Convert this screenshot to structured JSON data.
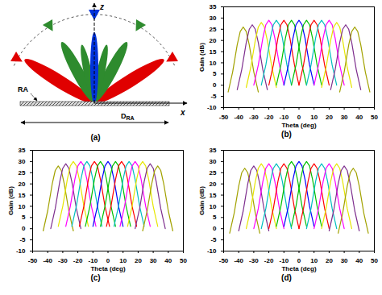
{
  "diagram": {
    "caption": "(a)",
    "axis_z": "z",
    "axis_x": "x",
    "array_label": "RA",
    "diameter_label": "D",
    "diameter_subscript": "RA"
  },
  "chart_data": [
    {
      "type": "line",
      "title": "(b)",
      "xlabel": "Theta (deg)",
      "ylabel": "Gain (dB)",
      "xlim": [
        -50,
        50
      ],
      "ylim": [
        -10,
        35
      ],
      "xticks": [
        -50,
        -40,
        -30,
        -20,
        -10,
        0,
        10,
        20,
        30,
        40,
        50
      ],
      "yticks": [
        -10,
        -5,
        0,
        5,
        10,
        15,
        20,
        25,
        30,
        35
      ],
      "grid": false,
      "series": [
        {
          "color": "#a2a200",
          "x": [
            -47,
            -44,
            -41,
            -39,
            -37,
            -35,
            -33,
            -30,
            -27
          ],
          "values": [
            -3,
            6,
            18,
            24,
            26,
            24,
            18,
            6,
            -3
          ]
        },
        {
          "color": "#7e2f8e",
          "x": [
            -41,
            -38,
            -35,
            -33,
            -31,
            -29,
            -27,
            -24,
            -21
          ],
          "values": [
            -2,
            7,
            19,
            25,
            27,
            25,
            19,
            7,
            -2
          ]
        },
        {
          "color": "#e6e600",
          "x": [
            -35,
            -32,
            -29,
            -27,
            -25,
            -23,
            -21,
            -18,
            -15
          ],
          "values": [
            -1,
            8,
            20,
            26,
            28,
            26,
            20,
            8,
            -1
          ]
        },
        {
          "color": "#ff00ff",
          "x": [
            -30,
            -27,
            -24,
            -22,
            -20,
            -18,
            -16,
            -13,
            -10
          ],
          "values": [
            0,
            9,
            21,
            27,
            29,
            27,
            21,
            9,
            0
          ]
        },
        {
          "color": "#00bfbf",
          "x": [
            -25,
            -22,
            -19,
            -17,
            -15,
            -13,
            -11,
            -8,
            -5
          ],
          "values": [
            0,
            9,
            21,
            27,
            29,
            27,
            21,
            9,
            0
          ]
        },
        {
          "color": "#ff0000",
          "x": [
            -20,
            -17,
            -14,
            -12,
            -10,
            -8,
            -6,
            -3,
            0
          ],
          "values": [
            0,
            9,
            21,
            27,
            29,
            27,
            21,
            9,
            0
          ]
        },
        {
          "color": "#00c000",
          "x": [
            -15,
            -12,
            -9,
            -7,
            -5,
            -3,
            -1,
            2,
            5
          ],
          "values": [
            0,
            9,
            21,
            27,
            29,
            27,
            21,
            9,
            0
          ]
        },
        {
          "color": "#0000ff",
          "x": [
            -10,
            -7,
            -4,
            -2,
            0,
            2,
            4,
            7,
            10
          ],
          "values": [
            0,
            9,
            21,
            27,
            29,
            27,
            21,
            9,
            0
          ]
        },
        {
          "color": "#00c000",
          "x": [
            -5,
            -2,
            1,
            3,
            5,
            7,
            9,
            12,
            15
          ],
          "values": [
            0,
            9,
            21,
            27,
            29,
            27,
            21,
            9,
            0
          ]
        },
        {
          "color": "#ff0000",
          "x": [
            0,
            3,
            6,
            8,
            10,
            12,
            14,
            17,
            20
          ],
          "values": [
            0,
            9,
            21,
            27,
            29,
            27,
            21,
            9,
            0
          ]
        },
        {
          "color": "#00bfbf",
          "x": [
            5,
            8,
            11,
            13,
            15,
            17,
            19,
            22,
            25
          ],
          "values": [
            0,
            9,
            21,
            27,
            29,
            27,
            21,
            9,
            0
          ]
        },
        {
          "color": "#ff00ff",
          "x": [
            10,
            13,
            16,
            18,
            20,
            22,
            24,
            27,
            30
          ],
          "values": [
            0,
            9,
            21,
            27,
            29,
            27,
            21,
            9,
            0
          ]
        },
        {
          "color": "#e6e600",
          "x": [
            15,
            18,
            21,
            23,
            25,
            27,
            29,
            32,
            35
          ],
          "values": [
            -1,
            8,
            20,
            26,
            28,
            26,
            20,
            8,
            -1
          ]
        },
        {
          "color": "#7e2f8e",
          "x": [
            21,
            24,
            27,
            29,
            31,
            33,
            35,
            38,
            41
          ],
          "values": [
            -2,
            7,
            19,
            25,
            27,
            25,
            19,
            7,
            -2
          ]
        },
        {
          "color": "#a2a200",
          "x": [
            27,
            30,
            33,
            35,
            37,
            39,
            41,
            44,
            47
          ],
          "values": [
            -3,
            6,
            18,
            24,
            26,
            24,
            18,
            6,
            -3
          ]
        }
      ]
    },
    {
      "type": "line",
      "title": "(c)",
      "xlabel": "Theta (deg)",
      "ylabel": "Gain (dB)",
      "xlim": [
        -50,
        50
      ],
      "ylim": [
        -10,
        35
      ],
      "xticks": [
        -50,
        -40,
        -30,
        -20,
        -10,
        0,
        10,
        20,
        30,
        40,
        50
      ],
      "yticks": [
        -10,
        -5,
        0,
        5,
        10,
        15,
        20,
        25,
        30,
        35
      ],
      "grid": false,
      "series": [
        {
          "color": "#a2a200",
          "x": [
            -43,
            -40,
            -37,
            -35,
            -33,
            -31,
            -29,
            -26,
            -23
          ],
          "values": [
            -1,
            8,
            20,
            26,
            28,
            26,
            20,
            8,
            -1
          ]
        },
        {
          "color": "#7e2f8e",
          "x": [
            -38,
            -35,
            -32,
            -30,
            -28,
            -26,
            -24,
            -21,
            -18
          ],
          "values": [
            0,
            9,
            21,
            27,
            29,
            27,
            21,
            9,
            0
          ]
        },
        {
          "color": "#e6e600",
          "x": [
            -33,
            -30,
            -27,
            -25,
            -23,
            -21,
            -19,
            -16,
            -13
          ],
          "values": [
            1,
            10,
            22,
            28,
            30,
            28,
            22,
            10,
            1
          ]
        },
        {
          "color": "#ff00ff",
          "x": [
            -28,
            -25,
            -22,
            -20,
            -18,
            -16,
            -14,
            -11,
            -8
          ],
          "values": [
            1,
            10,
            22,
            28,
            30,
            28,
            22,
            10,
            1
          ]
        },
        {
          "color": "#00bfbf",
          "x": [
            -24,
            -21,
            -18,
            -16,
            -14,
            -12,
            -10,
            -7,
            -4
          ],
          "values": [
            1,
            10,
            22,
            28,
            30,
            28,
            22,
            10,
            1
          ]
        },
        {
          "color": "#ff0000",
          "x": [
            -19,
            -16,
            -13,
            -11,
            -9,
            -7,
            -5,
            -2,
            1
          ],
          "values": [
            1,
            10,
            22,
            28,
            30,
            28,
            22,
            10,
            1
          ]
        },
        {
          "color": "#00c000",
          "x": [
            -15,
            -12,
            -9,
            -7,
            -5,
            -3,
            -1,
            2,
            5
          ],
          "values": [
            1,
            10,
            22,
            28,
            30,
            28,
            22,
            10,
            1
          ]
        },
        {
          "color": "#0000ff",
          "x": [
            -10,
            -7,
            -4,
            -2,
            0,
            2,
            4,
            7,
            10
          ],
          "values": [
            1,
            10,
            22,
            28,
            30,
            28,
            22,
            10,
            1
          ]
        },
        {
          "color": "#00c000",
          "x": [
            -5,
            -2,
            1,
            3,
            5,
            7,
            9,
            12,
            15
          ],
          "values": [
            1,
            10,
            22,
            28,
            30,
            28,
            22,
            10,
            1
          ]
        },
        {
          "color": "#ff0000",
          "x": [
            -1,
            2,
            5,
            7,
            9,
            11,
            13,
            16,
            19
          ],
          "values": [
            1,
            10,
            22,
            28,
            30,
            28,
            22,
            10,
            1
          ]
        },
        {
          "color": "#00bfbf",
          "x": [
            4,
            7,
            10,
            12,
            14,
            16,
            18,
            21,
            24
          ],
          "values": [
            1,
            10,
            22,
            28,
            30,
            28,
            22,
            10,
            1
          ]
        },
        {
          "color": "#ff00ff",
          "x": [
            8,
            11,
            14,
            16,
            18,
            20,
            22,
            25,
            28
          ],
          "values": [
            1,
            10,
            22,
            28,
            30,
            28,
            22,
            10,
            1
          ]
        },
        {
          "color": "#e6e600",
          "x": [
            13,
            16,
            19,
            21,
            23,
            25,
            27,
            30,
            33
          ],
          "values": [
            1,
            10,
            22,
            28,
            30,
            28,
            22,
            10,
            1
          ]
        },
        {
          "color": "#7e2f8e",
          "x": [
            18,
            21,
            24,
            26,
            28,
            30,
            32,
            35,
            38
          ],
          "values": [
            0,
            9,
            21,
            27,
            29,
            27,
            21,
            9,
            0
          ]
        },
        {
          "color": "#a2a200",
          "x": [
            23,
            26,
            29,
            31,
            33,
            35,
            37,
            40,
            43
          ],
          "values": [
            -1,
            8,
            20,
            26,
            28,
            26,
            20,
            8,
            -1
          ]
        }
      ]
    },
    {
      "type": "line",
      "title": "(d)",
      "xlabel": "Theta (deg)",
      "ylabel": "Gain (dB)",
      "xlim": [
        -50,
        50
      ],
      "ylim": [
        -10,
        35
      ],
      "xticks": [
        -50,
        -40,
        -30,
        -20,
        -10,
        0,
        10,
        20,
        30,
        40,
        50
      ],
      "yticks": [
        -10,
        -5,
        0,
        5,
        10,
        15,
        20,
        25,
        30,
        35
      ],
      "grid": false,
      "series": [
        {
          "color": "#a2a200",
          "x": [
            -46,
            -43,
            -40,
            -38,
            -36,
            -34,
            -32,
            -29,
            -26
          ],
          "values": [
            -2,
            7,
            19,
            25,
            27,
            25,
            19,
            7,
            -2
          ]
        },
        {
          "color": "#7e2f8e",
          "x": [
            -40,
            -37,
            -34,
            -32,
            -30,
            -28,
            -26,
            -23,
            -20
          ],
          "values": [
            -1,
            8,
            20,
            26,
            28,
            26,
            20,
            8,
            -1
          ]
        },
        {
          "color": "#e6e600",
          "x": [
            -35,
            -32,
            -29,
            -27,
            -25,
            -23,
            -21,
            -18,
            -15
          ],
          "values": [
            0,
            9,
            21,
            27,
            29,
            27,
            21,
            9,
            0
          ]
        },
        {
          "color": "#ff00ff",
          "x": [
            -30,
            -27,
            -24,
            -22,
            -20,
            -18,
            -16,
            -13,
            -10
          ],
          "values": [
            0,
            9,
            21,
            27,
            29,
            27,
            21,
            9,
            0
          ]
        },
        {
          "color": "#00bfbf",
          "x": [
            -25,
            -22,
            -19,
            -17,
            -15,
            -13,
            -11,
            -8,
            -5
          ],
          "values": [
            0,
            9,
            21,
            27,
            29,
            27,
            21,
            9,
            0
          ]
        },
        {
          "color": "#ff0000",
          "x": [
            -20,
            -17,
            -14,
            -12,
            -10,
            -8,
            -6,
            -3,
            0
          ],
          "values": [
            0,
            9,
            21,
            27,
            29,
            27,
            21,
            9,
            0
          ]
        },
        {
          "color": "#00c000",
          "x": [
            -15,
            -12,
            -9,
            -7,
            -5,
            -3,
            -1,
            2,
            5
          ],
          "values": [
            1,
            10,
            22,
            28,
            30,
            28,
            22,
            10,
            1
          ]
        },
        {
          "color": "#0000ff",
          "x": [
            -10,
            -7,
            -4,
            -2,
            0,
            2,
            4,
            7,
            10
          ],
          "values": [
            1,
            10,
            22,
            28,
            30,
            28,
            22,
            10,
            1
          ]
        },
        {
          "color": "#00c000",
          "x": [
            -5,
            -2,
            1,
            3,
            5,
            7,
            9,
            12,
            15
          ],
          "values": [
            1,
            10,
            22,
            28,
            30,
            28,
            22,
            10,
            1
          ]
        },
        {
          "color": "#ff0000",
          "x": [
            0,
            3,
            6,
            8,
            10,
            12,
            14,
            17,
            20
          ],
          "values": [
            0,
            9,
            21,
            27,
            29,
            27,
            21,
            9,
            0
          ]
        },
        {
          "color": "#00bfbf",
          "x": [
            5,
            8,
            11,
            13,
            15,
            17,
            19,
            22,
            25
          ],
          "values": [
            0,
            9,
            21,
            27,
            29,
            27,
            21,
            9,
            0
          ]
        },
        {
          "color": "#ff00ff",
          "x": [
            10,
            13,
            16,
            18,
            20,
            22,
            24,
            27,
            30
          ],
          "values": [
            0,
            9,
            21,
            27,
            29,
            27,
            21,
            9,
            0
          ]
        },
        {
          "color": "#e6e600",
          "x": [
            15,
            18,
            21,
            23,
            25,
            27,
            29,
            32,
            35
          ],
          "values": [
            0,
            9,
            21,
            27,
            29,
            27,
            21,
            9,
            0
          ]
        },
        {
          "color": "#7e2f8e",
          "x": [
            20,
            23,
            26,
            28,
            30,
            32,
            34,
            37,
            40
          ],
          "values": [
            -1,
            8,
            20,
            26,
            28,
            26,
            20,
            8,
            -1
          ]
        },
        {
          "color": "#a2a200",
          "x": [
            26,
            29,
            32,
            34,
            36,
            38,
            40,
            43,
            46
          ],
          "values": [
            -2,
            7,
            19,
            25,
            27,
            25,
            19,
            7,
            -2
          ]
        }
      ]
    }
  ]
}
